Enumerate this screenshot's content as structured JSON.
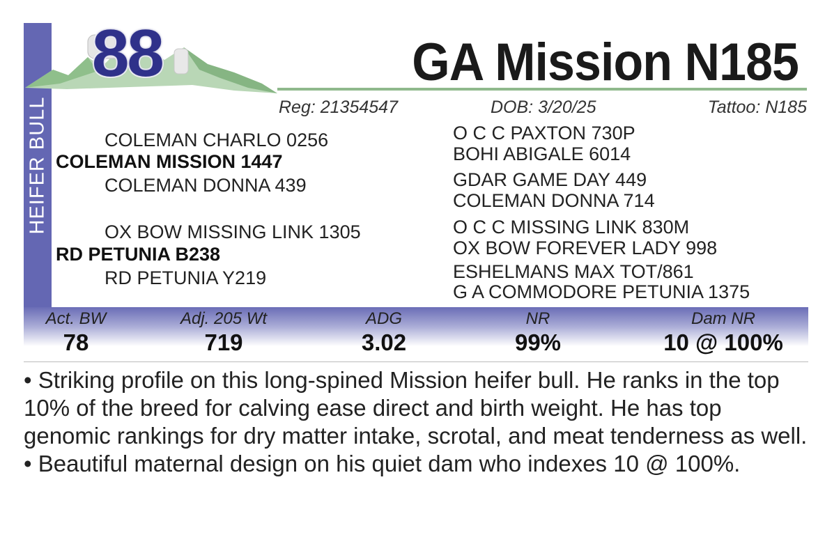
{
  "side_label": "HEIFER BULL",
  "lot_number": "88",
  "title": "GA Mission N185",
  "registration": "Reg: 21354547",
  "dob": "DOB:  3/20/25",
  "tattoo": "Tattoo:  N185",
  "colors": {
    "band": "#6467b3",
    "lot_number": "#2f318a",
    "rule": "#8fb98c"
  },
  "pedigree": {
    "sire": "COLEMAN MISSION 1447",
    "sire_sire": "COLEMAN CHARLO 0256",
    "sire_dam": "COLEMAN DONNA 439",
    "dam": "RD PETUNIA B238",
    "dam_sire": "OX BOW MISSING LINK 1305",
    "dam_dam": "RD PETUNIA Y219",
    "gg": [
      "O C C PAXTON 730P",
      "BOHI ABIGALE 6014",
      "GDAR GAME DAY 449",
      "COLEMAN DONNA 714",
      "O C C MISSING LINK 830M",
      "OX BOW FOREVER LADY 998",
      "ESHELMANS MAX TOT/861",
      "G A COMMODORE PETUNIA 1375"
    ]
  },
  "stats": [
    {
      "label": "Act. BW",
      "value": "78"
    },
    {
      "label": "Adj. 205 Wt",
      "value": "719"
    },
    {
      "label": "ADG",
      "value": "3.02"
    },
    {
      "label": "NR",
      "value": "99%"
    },
    {
      "label": "Dam NR",
      "value": "10 @ 100%"
    }
  ],
  "description": [
    "• Striking profile on this long-spined Mission heifer bull.  He ranks in the top 10% of the breed for calving ease direct and birth weight. He has top genomic rankings for dry matter intake, scrotal, and meat tenderness as well.",
    "• Beautiful maternal design on his quiet dam who indexes 10 @ 100%."
  ]
}
